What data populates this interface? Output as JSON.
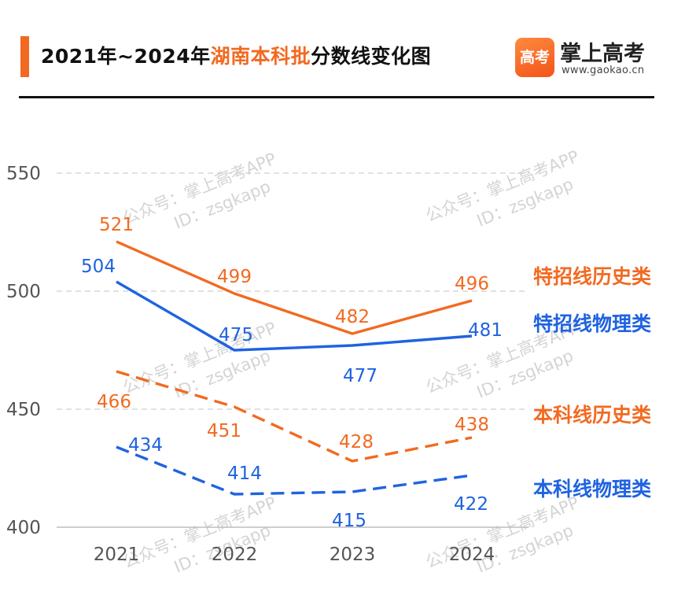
{
  "header": {
    "title_prefix": "2021年~2024年",
    "title_highlight": "湖南本科批",
    "title_suffix": "分数线变化图",
    "logo_mark": "高考",
    "logo_name": "掌上高考",
    "logo_url": "www.gaokao.cn"
  },
  "watermark": {
    "line1": "公众号：掌上高考APP",
    "line2": "ID：zsgkapp"
  },
  "colors": {
    "orange": "#f26a21",
    "blue": "#1f63e0",
    "grid": "#cfcfcf",
    "axis_text": "#555555",
    "watermark": "#d4d4d4"
  },
  "chart_data": {
    "type": "line",
    "x": [
      "2021",
      "2022",
      "2023",
      "2024"
    ],
    "yticks": [
      400,
      450,
      500,
      550
    ],
    "ylim": [
      400,
      550
    ],
    "grid": true,
    "legend": "right",
    "series": [
      {
        "name": "特招线历史类",
        "values": [
          521,
          499,
          482,
          496
        ],
        "color": "orange",
        "dashed": false
      },
      {
        "name": "特招线物理类",
        "values": [
          504,
          475,
          477,
          481
        ],
        "color": "blue",
        "dashed": false
      },
      {
        "name": "本科线历史类",
        "values": [
          466,
          451,
          428,
          438
        ],
        "color": "orange",
        "dashed": true
      },
      {
        "name": "本科线物理类",
        "values": [
          434,
          414,
          415,
          422
        ],
        "color": "blue",
        "dashed": true
      }
    ]
  }
}
